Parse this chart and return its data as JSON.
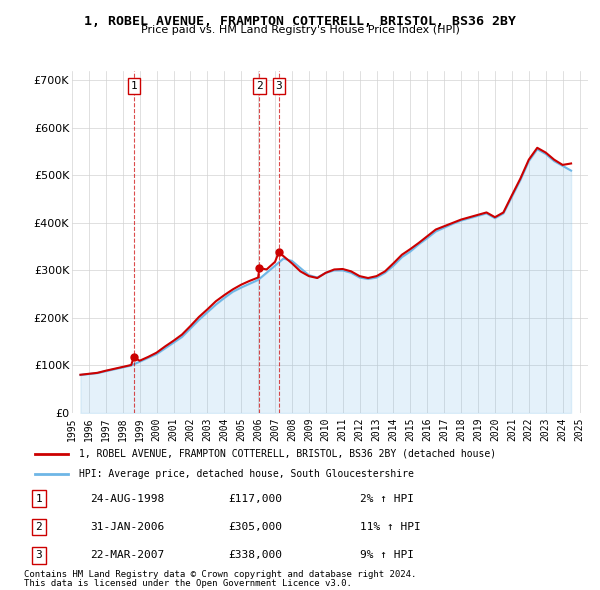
{
  "title": "1, ROBEL AVENUE, FRAMPTON COTTERELL, BRISTOL, BS36 2BY",
  "subtitle": "Price paid vs. HM Land Registry's House Price Index (HPI)",
  "legend_line1": "1, ROBEL AVENUE, FRAMPTON COTTERELL, BRISTOL, BS36 2BY (detached house)",
  "legend_line2": "HPI: Average price, detached house, South Gloucestershire",
  "footer1": "Contains HM Land Registry data © Crown copyright and database right 2024.",
  "footer2": "This data is licensed under the Open Government Licence v3.0.",
  "transactions": [
    {
      "num": 1,
      "date": "24-AUG-1998",
      "price": 117000,
      "pct": "2%",
      "year": 1998.65
    },
    {
      "num": 2,
      "date": "31-JAN-2006",
      "price": 305000,
      "pct": "11%",
      "year": 2006.08
    },
    {
      "num": 3,
      "date": "22-MAR-2007",
      "price": 338000,
      "pct": "9%",
      "year": 2007.22
    }
  ],
  "hpi_color": "#6eb6e6",
  "price_color": "#cc0000",
  "dashed_color": "#cc0000",
  "ylim": [
    0,
    720000
  ],
  "yticks": [
    0,
    100000,
    200000,
    300000,
    400000,
    500000,
    600000,
    700000
  ],
  "xlim_start": 1995.0,
  "xlim_end": 2025.5,
  "hpi_data": {
    "years": [
      1995.5,
      1996.0,
      1996.5,
      1997.0,
      1997.5,
      1998.0,
      1998.5,
      1999.0,
      1999.5,
      2000.0,
      2000.5,
      2001.0,
      2001.5,
      2002.0,
      2002.5,
      2003.0,
      2003.5,
      2004.0,
      2004.5,
      2005.0,
      2005.5,
      2006.0,
      2006.5,
      2007.0,
      2007.5,
      2008.0,
      2008.5,
      2009.0,
      2009.5,
      2010.0,
      2010.5,
      2011.0,
      2011.5,
      2012.0,
      2012.5,
      2013.0,
      2013.5,
      2014.0,
      2014.5,
      2015.0,
      2015.5,
      2016.0,
      2016.5,
      2017.0,
      2017.5,
      2018.0,
      2018.5,
      2019.0,
      2019.5,
      2020.0,
      2020.5,
      2021.0,
      2021.5,
      2022.0,
      2022.5,
      2023.0,
      2023.5,
      2024.0,
      2024.5
    ],
    "values": [
      80000,
      82000,
      84000,
      88000,
      92000,
      96000,
      100000,
      108000,
      116000,
      124000,
      136000,
      148000,
      160000,
      178000,
      196000,
      212000,
      228000,
      242000,
      255000,
      264000,
      272000,
      280000,
      295000,
      310000,
      325000,
      320000,
      305000,
      290000,
      285000,
      295000,
      300000,
      300000,
      295000,
      285000,
      282000,
      285000,
      295000,
      310000,
      328000,
      340000,
      355000,
      368000,
      382000,
      390000,
      398000,
      405000,
      410000,
      415000,
      420000,
      410000,
      420000,
      455000,
      490000,
      530000,
      555000,
      545000,
      530000,
      520000,
      510000
    ]
  },
  "price_data": {
    "years": [
      1995.5,
      1996.0,
      1996.5,
      1997.0,
      1997.5,
      1998.0,
      1998.5,
      1998.65,
      1999.0,
      1999.5,
      2000.0,
      2000.5,
      2001.0,
      2001.5,
      2002.0,
      2002.5,
      2003.0,
      2003.5,
      2004.0,
      2004.5,
      2005.0,
      2005.5,
      2006.0,
      2006.08,
      2006.5,
      2007.0,
      2007.22,
      2007.5,
      2008.0,
      2008.5,
      2009.0,
      2009.5,
      2010.0,
      2010.5,
      2011.0,
      2011.5,
      2012.0,
      2012.5,
      2013.0,
      2013.5,
      2014.0,
      2014.5,
      2015.0,
      2015.5,
      2016.0,
      2016.5,
      2017.0,
      2017.5,
      2018.0,
      2018.5,
      2019.0,
      2019.5,
      2020.0,
      2020.5,
      2021.0,
      2021.5,
      2022.0,
      2022.5,
      2023.0,
      2023.5,
      2024.0,
      2024.5
    ],
    "values": [
      80500,
      82500,
      84500,
      89000,
      93000,
      97000,
      101000,
      117000,
      110000,
      118000,
      127000,
      140000,
      152000,
      165000,
      183000,
      202000,
      218000,
      235000,
      248000,
      260000,
      270000,
      278000,
      285000,
      305000,
      302000,
      318000,
      338000,
      330000,
      315000,
      298000,
      288000,
      284000,
      295000,
      302000,
      303000,
      298000,
      288000,
      284000,
      288000,
      298000,
      315000,
      333000,
      345000,
      358000,
      372000,
      386000,
      393000,
      400000,
      407000,
      412000,
      417000,
      422000,
      412000,
      422000,
      458000,
      493000,
      533000,
      558000,
      548000,
      533000,
      522000,
      525000
    ]
  }
}
